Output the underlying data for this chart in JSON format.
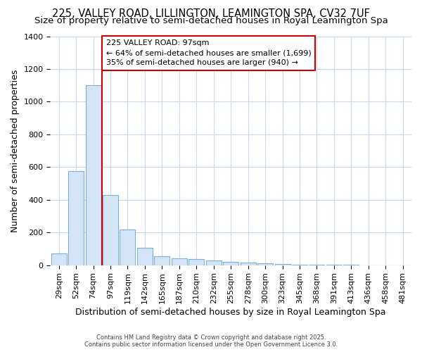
{
  "title": "225, VALLEY ROAD, LILLINGTON, LEAMINGTON SPA, CV32 7UF",
  "subtitle": "Size of property relative to semi-detached houses in Royal Leamington Spa",
  "xlabel": "Distribution of semi-detached houses by size in Royal Leamington Spa",
  "ylabel": "Number of semi-detached properties",
  "bar_labels": [
    "29sqm",
    "52sqm",
    "74sqm",
    "97sqm",
    "119sqm",
    "142sqm",
    "165sqm",
    "187sqm",
    "210sqm",
    "232sqm",
    "255sqm",
    "278sqm",
    "300sqm",
    "323sqm",
    "345sqm",
    "368sqm",
    "391sqm",
    "413sqm",
    "436sqm",
    "458sqm",
    "481sqm"
  ],
  "bar_values": [
    70,
    575,
    1100,
    430,
    220,
    105,
    55,
    40,
    35,
    30,
    20,
    15,
    10,
    5,
    3,
    2,
    1,
    1,
    0,
    0,
    0
  ],
  "bar_color": "#d4e4f7",
  "bar_edge_color": "#7bafd4",
  "red_line_x": 3,
  "annotation_title": "225 VALLEY ROAD: 97sqm",
  "annotation_line1": "← 64% of semi-detached houses are smaller (1,699)",
  "annotation_line2": "35% of semi-detached houses are larger (940) →",
  "annotation_color": "#cc0000",
  "ylim": [
    0,
    1400
  ],
  "footer1": "Contains HM Land Registry data © Crown copyright and database right 2025.",
  "footer2": "Contains public sector information licensed under the Open Government Licence 3.0.",
  "bg_color": "#ffffff",
  "grid_color": "#c8d8f0",
  "title_fontsize": 10.5,
  "subtitle_fontsize": 9.5,
  "axis_label_fontsize": 9,
  "tick_fontsize": 8
}
